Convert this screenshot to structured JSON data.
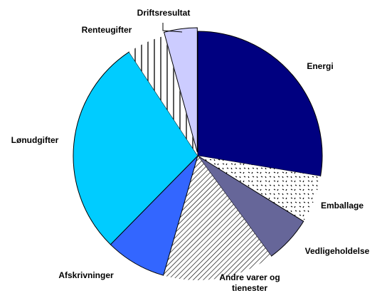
{
  "chart_data": {
    "type": "pie",
    "categories": [
      "Energi",
      "Emballage",
      "Vedligeholdelse",
      "Andre varer og tienester",
      "Afskrivninger",
      "Lønudgifter",
      "Renteugifter",
      "Driftsresultat"
    ],
    "values": [
      27.6,
      6.2,
      6.1,
      14.5,
      7.9,
      28.3,
      5.0,
      4.3
    ],
    "colors": [
      "#000080",
      "#ffffff",
      "#666699",
      "#ffffff",
      "#3366ff",
      "#00ccff",
      "#ffffff",
      "#ccccff"
    ],
    "patterns": [
      null,
      "dots",
      null,
      "diagonal",
      null,
      null,
      "vertical",
      null
    ]
  }
}
